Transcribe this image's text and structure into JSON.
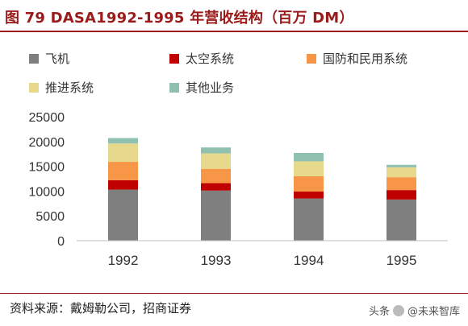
{
  "title": "图 79 DASA1992-1995 年营收结构（百万 DM）",
  "source": "资料来源：戴姆勒公司，招商证券",
  "watermark": {
    "prefix": "头条",
    "handle": "@未来智库"
  },
  "colors": {
    "title": "#9b1b1b",
    "aircraft": "#7f7f7f",
    "space": "#c00000",
    "defense": "#f79646",
    "propulsion": "#e6d98c",
    "other": "#8fc0b0"
  },
  "chart_data": {
    "type": "bar",
    "stacked": true,
    "categories": [
      "1992",
      "1993",
      "1994",
      "1995"
    ],
    "ylim": [
      0,
      25000
    ],
    "yticks": [
      "0",
      "5000",
      "10000",
      "15000",
      "20000",
      "25000"
    ],
    "grid": false,
    "legend_position": "top",
    "series": [
      {
        "name": "飞机",
        "color": "#7f7f7f",
        "values": [
          10300,
          10100,
          8500,
          8300
        ]
      },
      {
        "name": "太空系统",
        "color": "#c00000",
        "values": [
          1900,
          1500,
          1400,
          1900
        ]
      },
      {
        "name": "国防和民用系统",
        "color": "#f79646",
        "values": [
          3700,
          2900,
          3100,
          2600
        ]
      },
      {
        "name": "推进系统",
        "color": "#e6d98c",
        "values": [
          3700,
          3100,
          3000,
          2000
        ]
      },
      {
        "name": "其他业务",
        "color": "#8fc0b0",
        "values": [
          1100,
          1200,
          1700,
          500
        ]
      }
    ]
  }
}
